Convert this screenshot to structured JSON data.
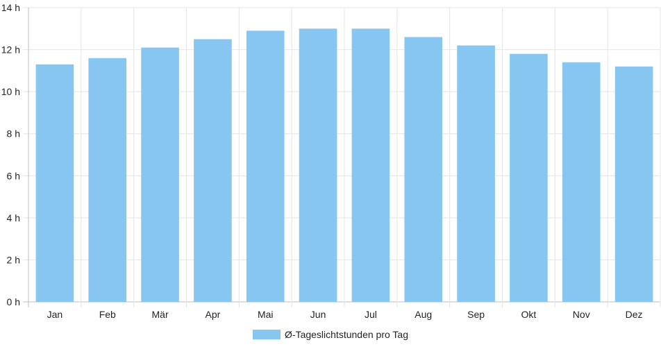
{
  "chart_data": {
    "type": "bar",
    "categories": [
      "Jan",
      "Feb",
      "Mär",
      "Apr",
      "Mai",
      "Jun",
      "Jul",
      "Aug",
      "Sep",
      "Okt",
      "Nov",
      "Dez"
    ],
    "series": [
      {
        "name": "Ø-Tageslichtstunden pro Tag",
        "values": [
          11.3,
          11.6,
          12.1,
          12.5,
          12.9,
          13.0,
          13.0,
          12.6,
          12.2,
          11.8,
          11.4,
          11.2
        ],
        "color": "#87c6f1"
      }
    ],
    "y_ticks": [
      "0 h",
      "2 h",
      "4 h",
      "6 h",
      "8 h",
      "10 h",
      "12 h",
      "14 h"
    ],
    "ylim": [
      0,
      14
    ],
    "y_unit": "h",
    "grid": true,
    "legend_position": "bottom"
  }
}
